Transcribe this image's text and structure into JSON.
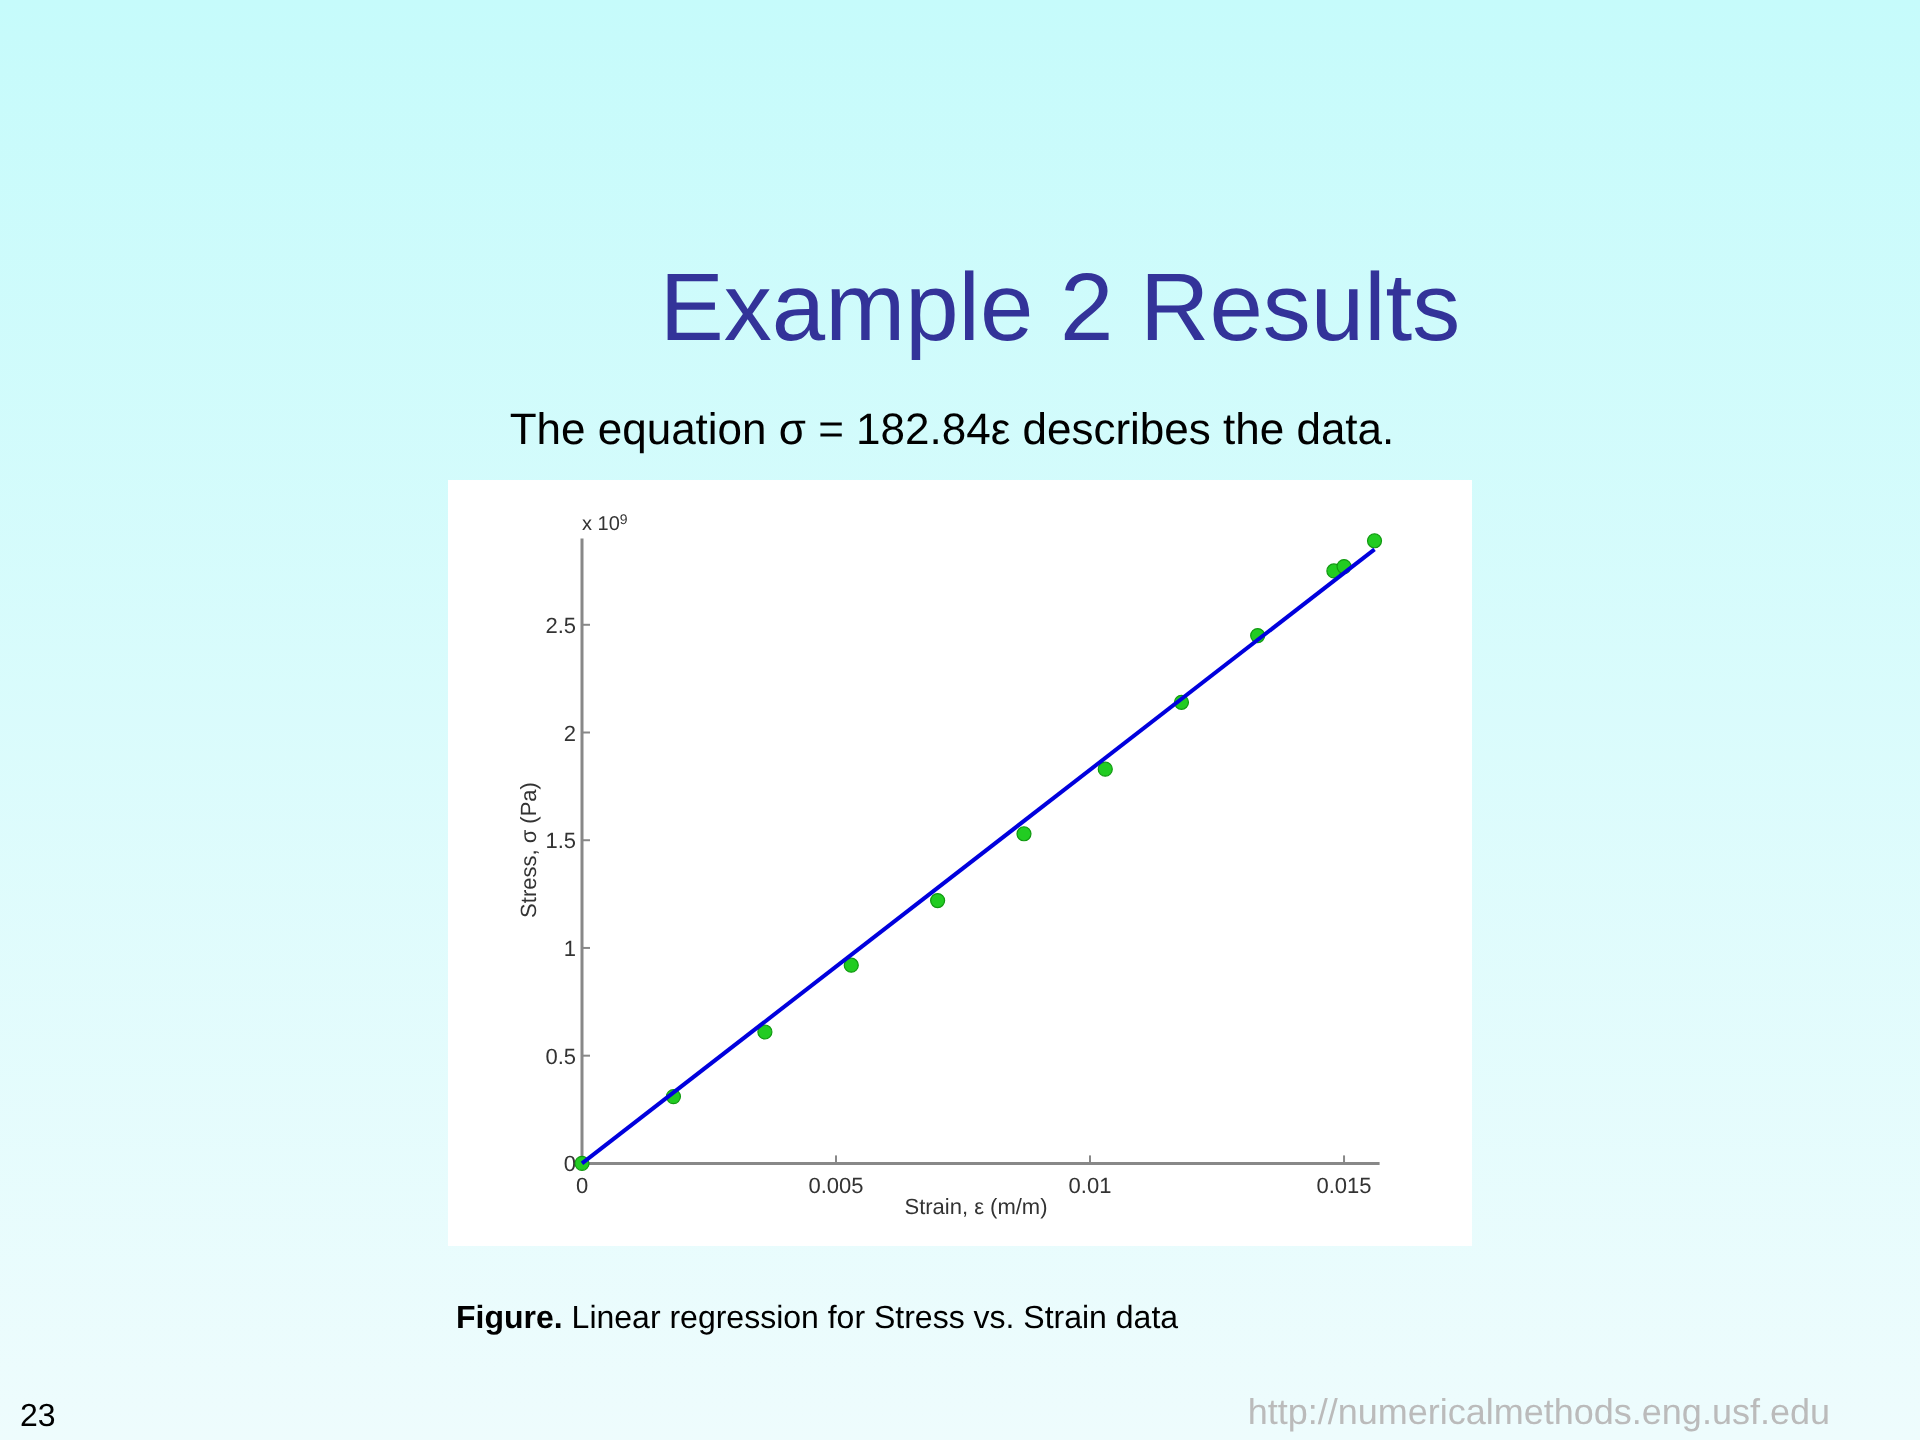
{
  "chart_data": {
    "type": "scatter",
    "title": "Example 2 Results",
    "subtitle": "The equation σ = 182.84ε describes the data.",
    "xlabel": "Strain, ε (m/m)",
    "ylabel": "Stress, σ (Pa)",
    "xlim": [
      0,
      0.0157
    ],
    "ylim": [
      0,
      2.9
    ],
    "xticks": [
      0,
      0.005,
      0.01,
      0.015
    ],
    "yticks": [
      0,
      0.5,
      1,
      1.5,
      2,
      2.5
    ],
    "series": [
      {
        "color": "#22cc22",
        "marker": "circle",
        "x": [
          0,
          0.0018,
          0.0036,
          0.0053,
          0.007,
          0.0087,
          0.0103,
          0.0118,
          0.0133,
          0.0148,
          0.015,
          0.0156
        ],
        "values": [
          0,
          0.31,
          0.61,
          0.92,
          1.22,
          1.53,
          1.83,
          2.14,
          2.45,
          2.75,
          2.77,
          2.89
        ]
      },
      {
        "type": "line",
        "color": "#0000dd",
        "line_style": "solid",
        "x": [
          0,
          0.0156
        ],
        "values": [
          0,
          2.85
        ]
      }
    ],
    "grid": false,
    "annotations": [
      "x 10$^{9}$",
      "Figure. Linear regression for Stress vs. Strain data",
      "23",
      "http://numericalmethods.eng.usf.edu"
    ]
  }
}
